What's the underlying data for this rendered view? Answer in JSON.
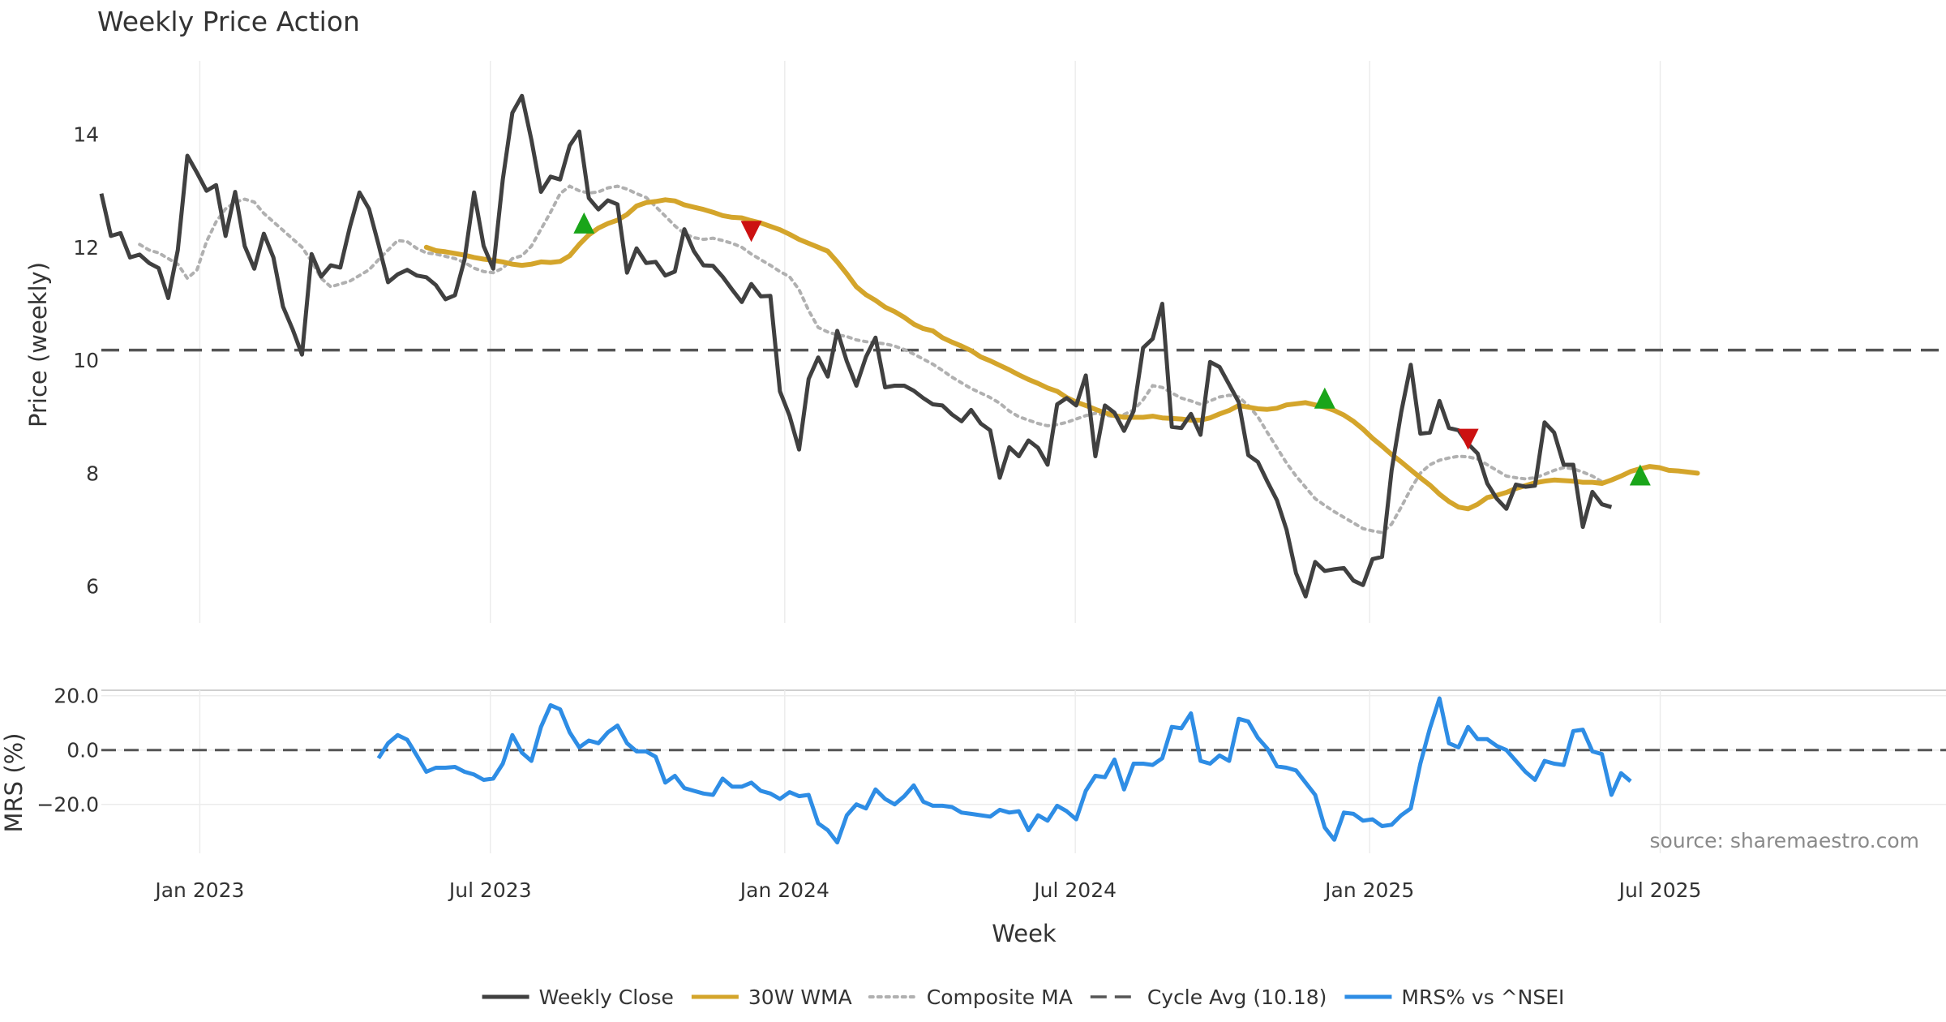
{
  "colors": {
    "close": "#404040",
    "wma": "#d4a52b",
    "composite": "#b0b0b0",
    "cycle": "#555555",
    "mrs": "#2e8de5",
    "buy": "#1aa51a",
    "sell": "#cc1111",
    "grid": "#ececec"
  },
  "chart_data": [
    {
      "type": "line",
      "title": "Weekly Price Action",
      "xlabel": "",
      "ylabel": "Price (weekly)",
      "ylim": [
        5.35,
        15.3
      ],
      "yticks": [
        "6",
        "8",
        "10",
        "12",
        "14"
      ],
      "ytick_values": [
        6,
        8,
        10,
        12,
        14
      ],
      "x_weeks_range": [
        0,
        193
      ],
      "grid": "vertical",
      "cycle_avg": 10.18,
      "series": [
        {
          "name": "Weekly Close",
          "style": "solid",
          "x_start": 0,
          "values": [
            12.95,
            12.2,
            12.25,
            11.82,
            11.87,
            11.72,
            11.63,
            11.1,
            11.95,
            13.62,
            13.32,
            13.0,
            13.1,
            12.2,
            12.98,
            12.02,
            11.62,
            12.24,
            11.82,
            10.95,
            10.55,
            10.1,
            11.88,
            11.48,
            11.68,
            11.64,
            12.36,
            12.97,
            12.68,
            12.05,
            11.38,
            11.52,
            11.6,
            11.5,
            11.47,
            11.33,
            11.08,
            11.15,
            11.78,
            12.97,
            12.02,
            11.62,
            13.2,
            14.38,
            14.68,
            13.9,
            12.98,
            13.25,
            13.2,
            13.8,
            14.05,
            12.87,
            12.67,
            12.83,
            12.76,
            11.55,
            11.98,
            11.72,
            11.74,
            11.5,
            11.57,
            12.32,
            11.93,
            11.68,
            11.67,
            11.48,
            11.25,
            11.03,
            11.35,
            11.13,
            11.14,
            9.45,
            9.02,
            8.42,
            9.67,
            10.05,
            9.71,
            10.52,
            9.98,
            9.55,
            10.06,
            10.4,
            9.52,
            9.55,
            9.55,
            9.46,
            9.33,
            9.22,
            9.2,
            9.04,
            8.92,
            9.12,
            8.88,
            8.76,
            7.92,
            8.46,
            8.3,
            8.58,
            8.45,
            8.15,
            9.22,
            9.33,
            9.2,
            9.73,
            8.3,
            9.2,
            9.07,
            8.75,
            9.1,
            10.22,
            10.38,
            11.0,
            8.82,
            8.8,
            9.05,
            8.68,
            9.97,
            9.88,
            9.57,
            9.26,
            8.32,
            8.2,
            7.85,
            7.52,
            7.0,
            6.23,
            5.82,
            6.43,
            6.27,
            6.3,
            6.32,
            6.1,
            6.02,
            6.48,
            6.52,
            8.05,
            9.08,
            9.92,
            8.7,
            8.72,
            9.28,
            8.8,
            8.76,
            8.52,
            8.35,
            7.82,
            7.55,
            7.37,
            7.8,
            7.76,
            7.78,
            8.9,
            8.72,
            8.15,
            8.15,
            7.05,
            7.67,
            7.45,
            7.4
          ]
        },
        {
          "name": "30W WMA",
          "style": "solid",
          "x_start": 34,
          "values": [
            12.0,
            11.94,
            11.92,
            11.89,
            11.86,
            11.82,
            11.79,
            11.77,
            11.74,
            11.7,
            11.68,
            11.7,
            11.74,
            11.73,
            11.75,
            11.85,
            12.05,
            12.22,
            12.34,
            12.42,
            12.48,
            12.58,
            12.73,
            12.79,
            12.81,
            12.84,
            12.82,
            12.75,
            12.71,
            12.67,
            12.62,
            12.56,
            12.53,
            12.52,
            12.47,
            12.43,
            12.37,
            12.31,
            12.23,
            12.14,
            12.07,
            12.0,
            11.93,
            11.74,
            11.53,
            11.3,
            11.16,
            11.06,
            10.94,
            10.86,
            10.76,
            10.64,
            10.56,
            10.52,
            10.4,
            10.32,
            10.25,
            10.17,
            10.06,
            9.99,
            9.91,
            9.83,
            9.74,
            9.66,
            9.59,
            9.51,
            9.45,
            9.34,
            9.26,
            9.2,
            9.13,
            9.07,
            9.02,
            8.99,
            8.99,
            8.99,
            9.01,
            8.98,
            8.97,
            8.96,
            8.94,
            8.94,
            8.98,
            9.05,
            9.11,
            9.2,
            9.17,
            9.14,
            9.13,
            9.15,
            9.21,
            9.23,
            9.25,
            9.21,
            9.17,
            9.11,
            9.03,
            8.92,
            8.78,
            8.62,
            8.48,
            8.33,
            8.2,
            8.06,
            7.92,
            7.79,
            7.63,
            7.5,
            7.4,
            7.37,
            7.45,
            7.57,
            7.61,
            7.66,
            7.73,
            7.78,
            7.83,
            7.86,
            7.88,
            7.87,
            7.86,
            7.84,
            7.84,
            7.82,
            7.88,
            7.95,
            8.03,
            8.08,
            8.12,
            8.1,
            8.05,
            8.04,
            8.02,
            8.0
          ]
        },
        {
          "name": "Composite MA",
          "style": "dotted",
          "x_start": 4,
          "values": [
            12.05,
            11.95,
            11.9,
            11.8,
            11.7,
            11.45,
            11.6,
            12.1,
            12.45,
            12.68,
            12.8,
            12.85,
            12.8,
            12.6,
            12.45,
            12.3,
            12.15,
            12.0,
            11.75,
            11.45,
            11.3,
            11.35,
            11.4,
            11.5,
            11.6,
            11.78,
            11.95,
            12.12,
            12.1,
            11.98,
            11.9,
            11.88,
            11.84,
            11.8,
            11.73,
            11.63,
            11.57,
            11.55,
            11.63,
            11.8,
            11.85,
            12.02,
            12.32,
            12.62,
            12.95,
            13.08,
            13.0,
            12.96,
            12.98,
            13.05,
            13.08,
            13.03,
            12.95,
            12.88,
            12.72,
            12.55,
            12.38,
            12.24,
            12.17,
            12.14,
            12.16,
            12.12,
            12.07,
            12.0,
            11.88,
            11.78,
            11.68,
            11.57,
            11.48,
            11.25,
            10.88,
            10.58,
            10.5,
            10.45,
            10.42,
            10.36,
            10.33,
            10.31,
            10.29,
            10.25,
            10.19,
            10.11,
            10.02,
            9.93,
            9.82,
            9.7,
            9.6,
            9.5,
            9.42,
            9.34,
            9.24,
            9.1,
            9.0,
            8.94,
            8.88,
            8.84,
            8.86,
            8.9,
            8.96,
            9.02,
            9.06,
            9.03,
            9.0,
            9.04,
            9.12,
            9.3,
            9.55,
            9.52,
            9.42,
            9.33,
            9.28,
            9.22,
            9.28,
            9.35,
            9.38,
            9.35,
            9.2,
            9.0,
            8.72,
            8.45,
            8.18,
            7.95,
            7.75,
            7.55,
            7.43,
            7.32,
            7.22,
            7.12,
            7.02,
            6.98,
            6.95,
            7.1,
            7.4,
            7.72,
            8.0,
            8.15,
            8.23,
            8.27,
            8.3,
            8.29,
            8.25,
            8.15,
            8.05,
            7.95,
            7.92,
            7.9,
            7.92,
            7.98,
            8.05,
            8.1,
            8.08,
            8.02,
            7.95,
            7.85
          ]
        }
      ],
      "signals": [
        {
          "type": "buy",
          "x": 50.5,
          "y": 12.43
        },
        {
          "type": "sell",
          "x": 68,
          "y": 12.28
        },
        {
          "type": "buy",
          "x": 128,
          "y": 9.33
        },
        {
          "type": "sell",
          "x": 143,
          "y": 8.6
        },
        {
          "type": "buy",
          "x": 161,
          "y": 7.97
        }
      ]
    },
    {
      "type": "line",
      "xlabel": "Week",
      "ylabel": "MRS (%)",
      "ylim": [
        -38,
        22
      ],
      "yticks": [
        "20.0",
        "0.0",
        "−20.0"
      ],
      "ytick_values": [
        20,
        0,
        -20
      ],
      "x_tick_labels": [
        "Jan 2023",
        "Jul 2023",
        "Jan 2024",
        "Jul 2024",
        "Jan 2025",
        "Jul 2025"
      ],
      "x_tick_weeks": [
        10.3,
        40.7,
        71.5,
        101.9,
        132.7,
        163.1
      ],
      "series": [
        {
          "name": "MRS% vs ^NSEI",
          "x_start": 29,
          "values": [
            -3.0,
            2.5,
            5.5,
            3.8,
            -2.0,
            -8.0,
            -6.5,
            -6.5,
            -6.2,
            -8.0,
            -9.0,
            -11.0,
            -10.5,
            -5.0,
            5.5,
            -1.0,
            -4.0,
            8.5,
            16.5,
            15.0,
            6.5,
            1.0,
            3.5,
            2.5,
            6.5,
            9.0,
            2.5,
            -0.5,
            -0.5,
            -2.5,
            -12.0,
            -9.5,
            -14.0,
            -15.0,
            -16.0,
            -16.5,
            -10.5,
            -13.5,
            -13.5,
            -12.0,
            -15.0,
            -16.0,
            -18.0,
            -15.5,
            -17.0,
            -16.5,
            -27.0,
            -29.5,
            -34.0,
            -24.0,
            -20.0,
            -21.5,
            -14.5,
            -18.0,
            -20.0,
            -17.0,
            -13.0,
            -19.0,
            -20.5,
            -20.5,
            -21.0,
            -23.0,
            -23.5,
            -24.0,
            -24.5,
            -22.0,
            -23.0,
            -22.5,
            -29.5,
            -24.0,
            -26.0,
            -20.5,
            -22.5,
            -25.5,
            -15.0,
            -9.5,
            -10.0,
            -3.5,
            -14.5,
            -5.0,
            -5.0,
            -5.5,
            -3.0,
            8.5,
            8.0,
            13.5,
            -4.0,
            -5.0,
            -2.0,
            -4.0,
            11.5,
            10.5,
            4.5,
            0.5,
            -6.0,
            -6.5,
            -7.5,
            -12.0,
            -16.5,
            -28.5,
            -33.0,
            -23.0,
            -23.5,
            -26.0,
            -25.5,
            -28.0,
            -27.5,
            -24.0,
            -21.5,
            -5.0,
            8.0,
            19.0,
            2.5,
            1.0,
            8.5,
            4.0,
            4.0,
            1.5,
            0.0,
            -4.0,
            -8.0,
            -11.0,
            -4.0,
            -5.0,
            -5.5,
            7.0,
            7.5,
            -0.5,
            -1.5,
            -16.5,
            -8.5,
            -11.5
          ]
        }
      ]
    }
  ],
  "source": "source: sharemaestro.com",
  "legend": [
    {
      "key": "close",
      "label": "Weekly Close",
      "style": "solid"
    },
    {
      "key": "wma",
      "label": "30W WMA",
      "style": "solid"
    },
    {
      "key": "composite",
      "label": "Composite MA",
      "style": "dotted"
    },
    {
      "key": "cycle",
      "label": "Cycle Avg (10.18)",
      "style": "dashed"
    },
    {
      "key": "mrs",
      "label": "MRS% vs ^NSEI",
      "style": "solid"
    }
  ]
}
